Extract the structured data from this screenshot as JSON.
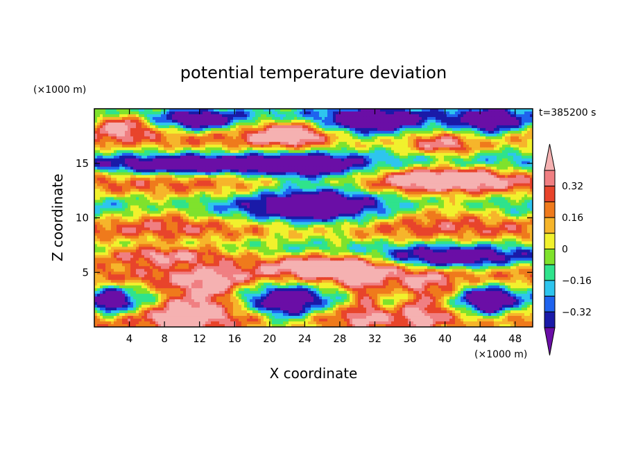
{
  "chart_data": {
    "type": "heatmap",
    "title": "potential temperature deviation",
    "xlabel": "X coordinate",
    "ylabel": "Z coordinate",
    "x_unit": "(×1000 m)",
    "y_unit": "(×1000 m)",
    "time_label": "t=385200 s",
    "xlim": [
      0,
      50
    ],
    "ylim": [
      0,
      20
    ],
    "x_ticks": [
      4,
      8,
      12,
      16,
      20,
      24,
      28,
      32,
      36,
      40,
      44,
      48
    ],
    "y_ticks": [
      5,
      10,
      15
    ],
    "colorbar": {
      "labels": [
        {
          "value": 0.32,
          "text": "0.32"
        },
        {
          "value": 0.16,
          "text": "0.16"
        },
        {
          "value": 0,
          "text": "0"
        },
        {
          "value": -0.16,
          "text": "−0.16"
        },
        {
          "value": -0.32,
          "text": "−0.32"
        }
      ],
      "levels": [
        -0.4,
        -0.32,
        -0.24,
        -0.16,
        -0.08,
        0,
        0.08,
        0.16,
        0.24,
        0.32,
        0.4
      ],
      "colors": [
        "#6a0ea6",
        "#1a1aa8",
        "#1f63ee",
        "#2ec5ee",
        "#2fe38c",
        "#7fe22c",
        "#f1f12d",
        "#f6b52b",
        "#ef7a1c",
        "#e8442b",
        "#f07f82",
        "#f5b1b1"
      ],
      "extend": "both"
    },
    "fields": [
      {
        "center": [
          10,
          2.0
        ],
        "sx": 3.2,
        "sz": 2.2,
        "amp": 0.55
      },
      {
        "center": [
          14,
          3.0
        ],
        "sx": 2.5,
        "sz": 2.0,
        "amp": 0.45
      },
      {
        "center": [
          2,
          2.3
        ],
        "sx": 1.8,
        "sz": 1.3,
        "amp": -0.5
      },
      {
        "center": [
          22,
          2.0
        ],
        "sx": 3.0,
        "sz": 2.0,
        "amp": -0.55
      },
      {
        "center": [
          31,
          2.6
        ],
        "sx": 2.5,
        "sz": 2.2,
        "amp": 0.45
      },
      {
        "center": [
          37,
          2.4
        ],
        "sx": 2.3,
        "sz": 2.1,
        "amp": 0.5
      },
      {
        "center": [
          45,
          2.2
        ],
        "sx": 2.6,
        "sz": 1.6,
        "amp": -0.5
      },
      {
        "center": [
          40,
          3.0
        ],
        "sx": 1.5,
        "sz": 1.5,
        "amp": 0.25
      },
      {
        "center": [
          8,
          6.6
        ],
        "sx": 9.0,
        "sz": 0.9,
        "amp": 0.6
      },
      {
        "center": [
          27,
          5.8
        ],
        "sx": 8.0,
        "sz": 1.1,
        "amp": 0.6
      },
      {
        "center": [
          40,
          6.2
        ],
        "sx": 8.0,
        "sz": 1.0,
        "amp": -0.5
      },
      {
        "center": [
          25,
          11.4
        ],
        "sx": 7.0,
        "sz": 2.6,
        "amp": -0.55
      },
      {
        "center": [
          40,
          10.5
        ],
        "sx": 7.0,
        "sz": 1.2,
        "amp": 0.25
      },
      {
        "center": [
          8,
          10.5
        ],
        "sx": 5.0,
        "sz": 1.5,
        "amp": 0.2
      },
      {
        "center": [
          11,
          14.8
        ],
        "sx": 9.0,
        "sz": 0.8,
        "amp": -0.55
      },
      {
        "center": [
          24,
          14.8
        ],
        "sx": 6.0,
        "sz": 1.0,
        "amp": -0.45
      },
      {
        "center": [
          40,
          13.7
        ],
        "sx": 7.0,
        "sz": 1.1,
        "amp": 0.5
      },
      {
        "center": [
          32,
          18.5
        ],
        "sx": 6.0,
        "sz": 1.5,
        "amp": -0.55
      },
      {
        "center": [
          45,
          18.5
        ],
        "sx": 4.0,
        "sz": 1.5,
        "amp": -0.5
      },
      {
        "center": [
          12,
          18.8
        ],
        "sx": 4.0,
        "sz": 1.0,
        "amp": -0.45
      },
      {
        "center": [
          3,
          18.6
        ],
        "sx": 3.0,
        "sz": 1.0,
        "amp": 0.5
      },
      {
        "center": [
          22,
          17.8
        ],
        "sx": 4.0,
        "sz": 1.2,
        "amp": 0.45
      },
      {
        "center": [
          40,
          16.5
        ],
        "sx": 4.0,
        "sz": 1.0,
        "amp": 0.3
      }
    ],
    "background": {
      "base": 0.02,
      "band_amp": 0.22,
      "band_period": 4.2
    },
    "grid": false
  }
}
